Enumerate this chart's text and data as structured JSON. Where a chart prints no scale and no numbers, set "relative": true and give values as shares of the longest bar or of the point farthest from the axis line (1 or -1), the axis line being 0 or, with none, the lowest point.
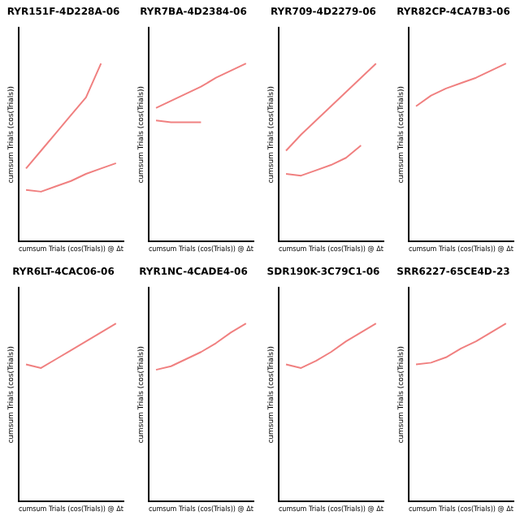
{
  "chart_data": [
    {
      "type": "line",
      "title": "RYR151F-4D228A-06",
      "xlabel": "cumsum Trials (cos(Trials)) @ Δt",
      "ylabel": "cumsum Trials (cos(Trials))",
      "relative": true,
      "grid": false,
      "legend": false,
      "marker": "none",
      "line_style": "solid",
      "categories": [
        null,
        null,
        null,
        null,
        null,
        null,
        null
      ],
      "series": [
        {
          "color": "#f08080",
          "values": [
            0.41,
            0.51,
            0.61,
            0.71,
            0.81,
            1,
            null
          ]
        },
        {
          "color": "#f08080",
          "values": [
            0.29,
            0.28,
            0.31,
            0.34,
            0.38,
            0.41,
            0.44
          ]
        }
      ]
    },
    {
      "type": "line",
      "title": "RYR7BA-4D2384-06",
      "xlabel": "cumsum Trials (cos(Trials)) @ Δt",
      "ylabel": "cumsum Trials (cos(Trials))",
      "relative": true,
      "grid": false,
      "legend": false,
      "marker": "none",
      "line_style": "solid",
      "categories": [
        null,
        null,
        null,
        null,
        null,
        null,
        null
      ],
      "series": [
        {
          "color": "#f08080",
          "values": [
            0.75,
            0.79,
            0.83,
            0.87,
            0.92,
            0.96,
            1
          ]
        },
        {
          "color": "#f08080",
          "values": [
            0.68,
            0.67,
            0.67,
            0.67,
            null,
            null,
            null
          ]
        }
      ]
    },
    {
      "type": "line",
      "title": "RYR709-4D2279-06",
      "xlabel": "cumsum Trials (cos(Trials)) @ Δt",
      "ylabel": "cumsum Trials (cos(Trials))",
      "relative": true,
      "grid": false,
      "legend": false,
      "marker": "none",
      "line_style": "solid",
      "categories": [
        null,
        null,
        null,
        null,
        null,
        null,
        null
      ],
      "series": [
        {
          "color": "#f08080",
          "values": [
            0.51,
            0.6,
            0.68,
            0.76,
            0.84,
            0.92,
            1
          ]
        },
        {
          "color": "#f08080",
          "values": [
            0.38,
            0.37,
            0.4,
            0.43,
            0.47,
            0.54,
            null
          ]
        }
      ]
    },
    {
      "type": "line",
      "title": "RYR82CP-4CA7B3-06",
      "xlabel": "cumsum Trials (cos(Trials)) @ Δt",
      "ylabel": "cumsum Trials (cos(Trials))",
      "relative": true,
      "grid": false,
      "legend": false,
      "marker": "none",
      "line_style": "solid",
      "categories": [
        null,
        null,
        null,
        null,
        null,
        null,
        null
      ],
      "series": [
        {
          "color": "#f08080",
          "values": [
            0.76,
            0.82,
            0.86,
            0.89,
            0.92,
            0.96,
            1
          ]
        }
      ]
    },
    {
      "type": "line",
      "title": "RYR6LT-4CAC06-06",
      "xlabel": "cumsum Trials (cos(Trials)) @ Δt",
      "ylabel": "cumsum Trials (cos(Trials))",
      "relative": true,
      "grid": false,
      "legend": false,
      "marker": "none",
      "line_style": "solid",
      "categories": [
        null,
        null,
        null,
        null,
        null,
        null,
        null
      ],
      "series": [
        {
          "color": "#f08080",
          "values": [
            0.77,
            0.75,
            0.8,
            0.85,
            0.9,
            0.95,
            1
          ]
        }
      ]
    },
    {
      "type": "line",
      "title": "RYR1NC-4CADE4-06",
      "xlabel": "cumsum Trials (cos(Trials)) @ Δt",
      "ylabel": "cumsum Trials (cos(Trials))",
      "relative": true,
      "grid": false,
      "legend": false,
      "marker": "none",
      "line_style": "solid",
      "categories": [
        null,
        null,
        null,
        null,
        null,
        null,
        null
      ],
      "series": [
        {
          "color": "#f08080",
          "values": [
            0.74,
            0.76,
            0.8,
            0.84,
            0.89,
            0.95,
            1
          ]
        }
      ]
    },
    {
      "type": "line",
      "title": "SDR190K-3C79C1-06",
      "xlabel": "cumsum Trials (cos(Trials)) @ Δt",
      "ylabel": "cumsum Trials (cos(Trials))",
      "relative": true,
      "grid": false,
      "legend": false,
      "marker": "none",
      "line_style": "solid",
      "categories": [
        null,
        null,
        null,
        null,
        null,
        null,
        null
      ],
      "series": [
        {
          "color": "#f08080",
          "values": [
            0.77,
            0.75,
            0.79,
            0.84,
            0.9,
            0.95,
            1
          ]
        }
      ]
    },
    {
      "type": "line",
      "title": "SRR6227-65CE4D-23",
      "xlabel": "cumsum Trials (cos(Trials)) @ Δt",
      "ylabel": "cumsum Trials (cos(Trials))",
      "relative": true,
      "grid": false,
      "legend": false,
      "marker": "none",
      "line_style": "solid",
      "categories": [
        null,
        null,
        null,
        null,
        null,
        null,
        null
      ],
      "series": [
        {
          "color": "#f08080",
          "values": [
            0.77,
            0.78,
            0.81,
            0.86,
            0.9,
            0.95,
            1
          ]
        }
      ]
    }
  ]
}
